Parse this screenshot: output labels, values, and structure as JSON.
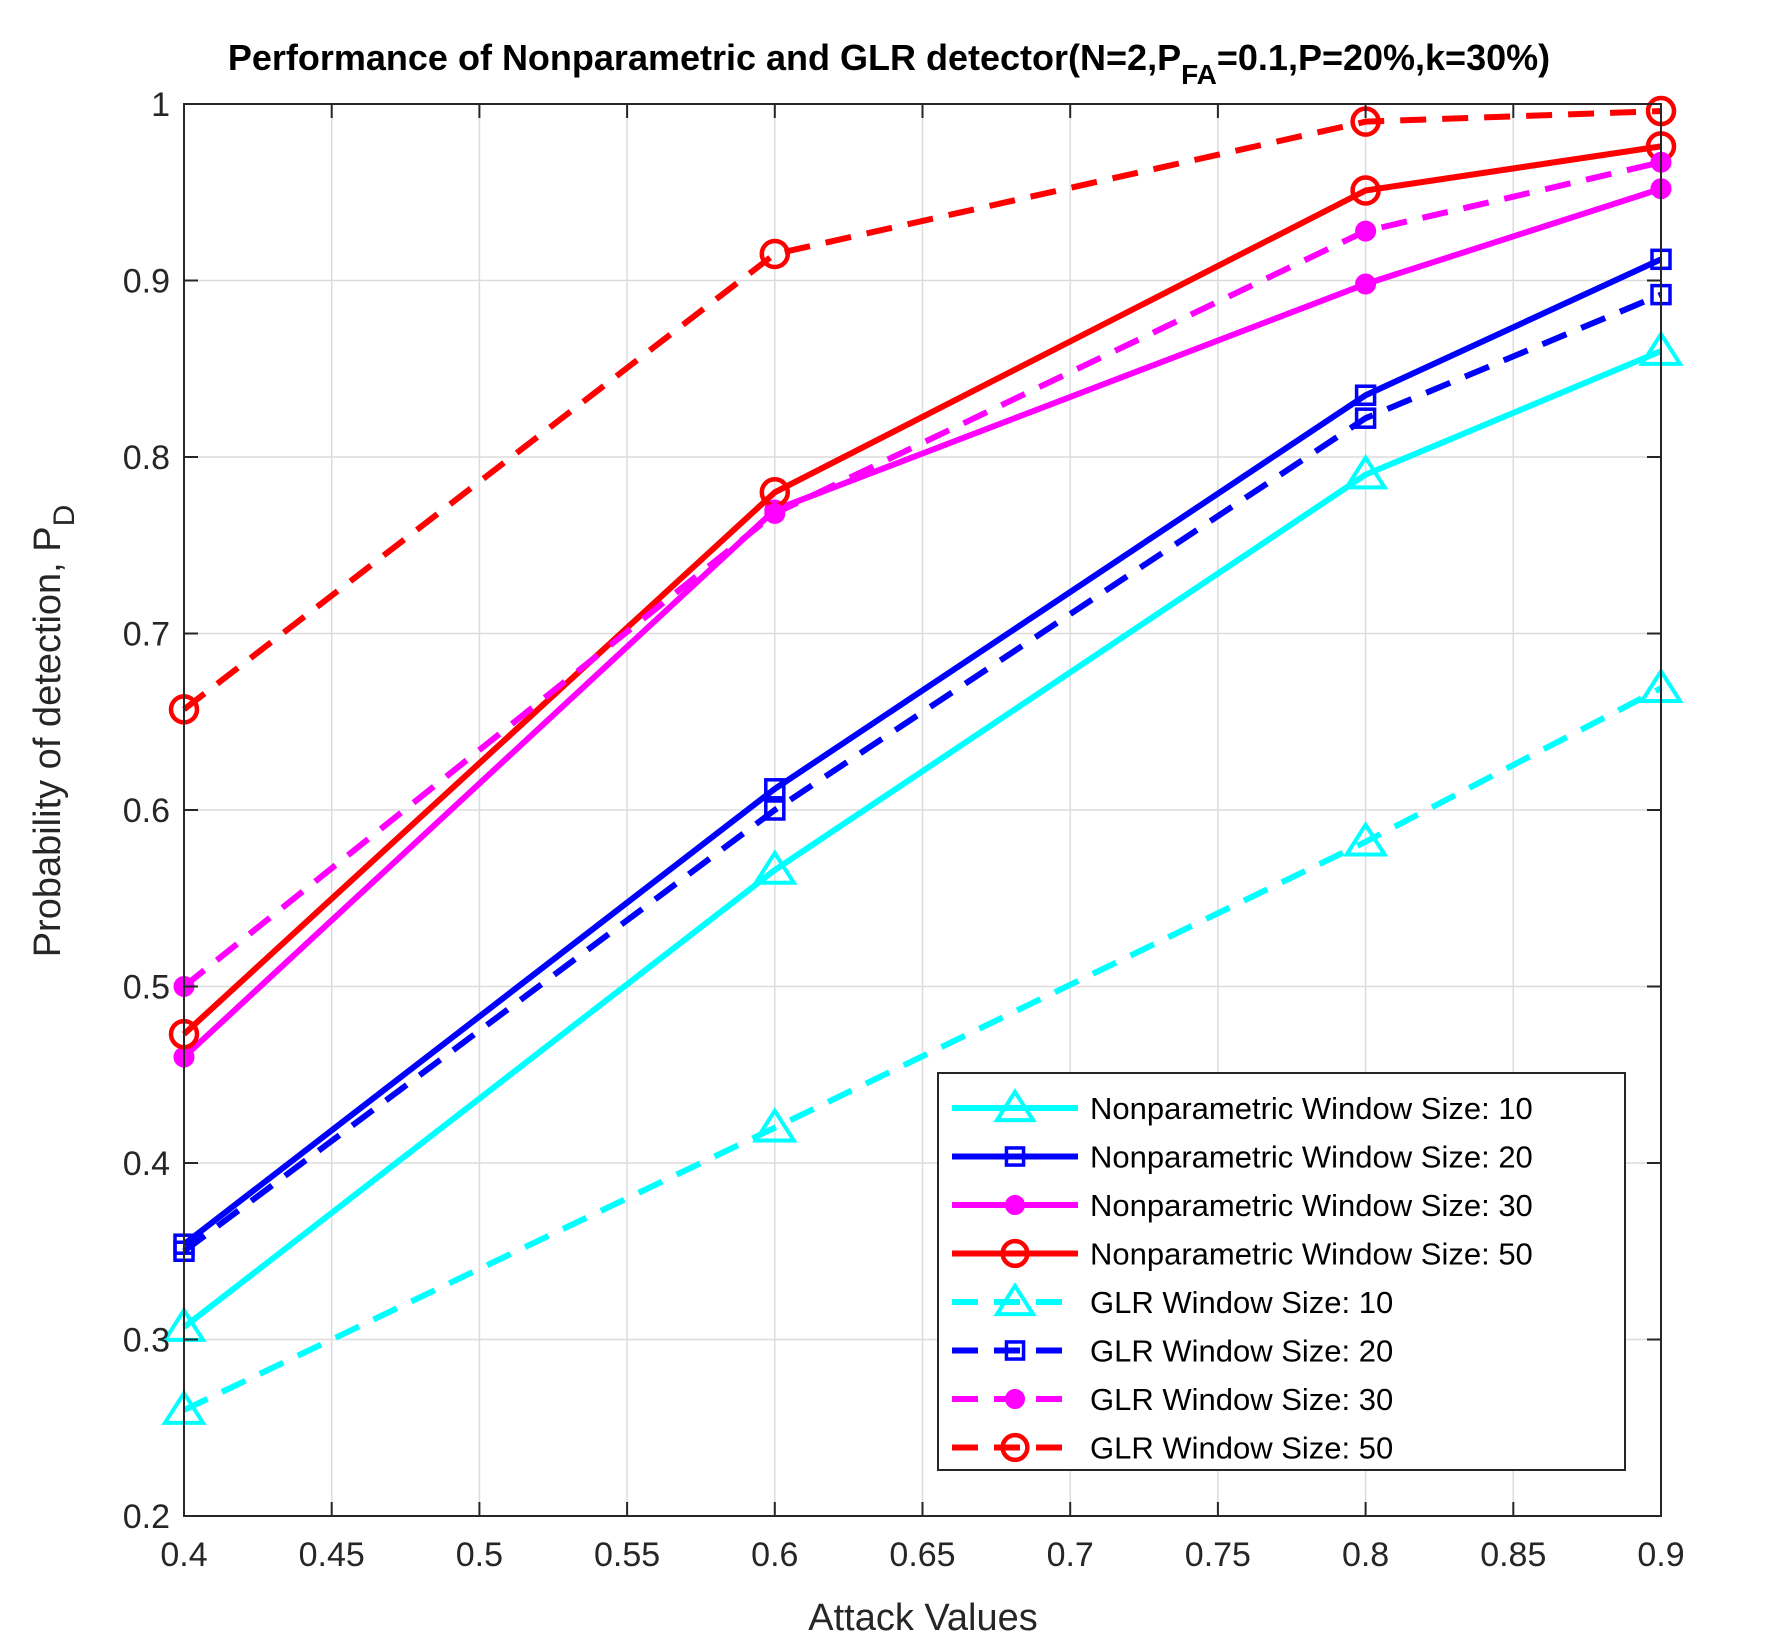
{
  "chart_data": {
    "type": "line",
    "title": {
      "prefix": "Performance of Nonparametric and GLR detector(N=2,P",
      "sub": "FA",
      "suffix": "=0.1,P=20%,k=30%)"
    },
    "xlabel": "Attack Values",
    "ylabel": {
      "main": "Probability of detection, P",
      "sub": "D"
    },
    "xlim": [
      0.4,
      0.9
    ],
    "ylim": [
      0.2,
      1
    ],
    "xticks": [
      0.4,
      0.45,
      0.5,
      0.55,
      0.6,
      0.65,
      0.7,
      0.75,
      0.8,
      0.85,
      0.9
    ],
    "yticks": [
      0.2,
      0.3,
      0.4,
      0.5,
      0.6,
      0.7,
      0.8,
      0.9,
      1
    ],
    "xtick_labels": [
      "0.4",
      "0.45",
      "0.5",
      "0.55",
      "0.6",
      "0.65",
      "0.7",
      "0.75",
      "0.8",
      "0.85",
      "0.9"
    ],
    "ytick_labels": [
      "0.2",
      "0.3",
      "0.4",
      "0.5",
      "0.6",
      "0.7",
      "0.8",
      "0.9",
      "1"
    ],
    "grid": true,
    "legend_position": "bottom-right",
    "x": [
      0.4,
      0.6,
      0.8,
      0.9
    ],
    "series": [
      {
        "name": "Nonparametric Window Size: 10",
        "values": [
          0.307,
          0.566,
          0.79,
          0.86
        ],
        "color": "#00FFFF",
        "style": "solid",
        "marker": "triangle"
      },
      {
        "name": "Nonparametric Window Size: 20",
        "values": [
          0.354,
          0.612,
          0.835,
          0.912
        ],
        "color": "#0000FF",
        "style": "solid",
        "marker": "square"
      },
      {
        "name": "Nonparametric Window Size: 30",
        "values": [
          0.46,
          0.77,
          0.898,
          0.952
        ],
        "color": "#FF00FF",
        "style": "solid",
        "marker": "dot"
      },
      {
        "name": "Nonparametric Window Size: 50",
        "values": [
          0.473,
          0.78,
          0.951,
          0.976
        ],
        "color": "#FF0000",
        "style": "solid",
        "marker": "circle"
      },
      {
        "name": "GLR Window Size: 10",
        "values": [
          0.26,
          0.42,
          0.582,
          0.669
        ],
        "color": "#00FFFF",
        "style": "dashed",
        "marker": "triangle"
      },
      {
        "name": "GLR Window Size: 20",
        "values": [
          0.35,
          0.6,
          0.822,
          0.892
        ],
        "color": "#0000FF",
        "style": "dashed",
        "marker": "square"
      },
      {
        "name": "GLR Window Size: 30",
        "values": [
          0.5,
          0.768,
          0.928,
          0.967
        ],
        "color": "#FF00FF",
        "style": "dashed",
        "marker": "dot"
      },
      {
        "name": "GLR Window Size: 50",
        "values": [
          0.657,
          0.915,
          0.99,
          0.996
        ],
        "color": "#FF0000",
        "style": "dashed",
        "marker": "circle"
      }
    ]
  }
}
